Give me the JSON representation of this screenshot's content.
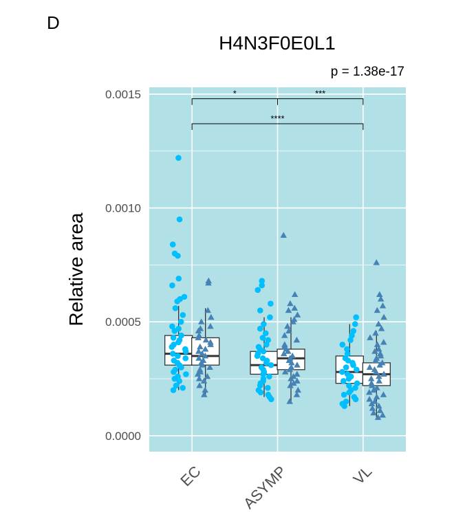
{
  "panel_label": "D",
  "chart_data": {
    "type": "box",
    "title": "H4N3F0E0L1",
    "subtitle": "p = 1.38e-17",
    "xlabel": "",
    "ylabel": "Relative area",
    "categories": [
      "EC",
      "ASYMP",
      "VL"
    ],
    "ylim": [
      -7e-05,
      0.00153
    ],
    "yticks": [
      0.0,
      0.0005,
      0.001,
      0.0015
    ],
    "ytick_labels": [
      "0.0000",
      "0.0005",
      "0.0010",
      "0.0015"
    ],
    "grid": true,
    "panel_color": "#b2e0e7",
    "series": [
      {
        "marker": "circle",
        "color": "#00bfff",
        "boxes": [
          {
            "category": "EC",
            "q1": 0.00031,
            "median": 0.00036,
            "q3": 0.00044,
            "whisker_low": 0.0002,
            "whisker_high": 0.00057
          },
          {
            "category": "ASYMP",
            "q1": 0.00027,
            "median": 0.00031,
            "q3": 0.00037,
            "whisker_low": 0.00017,
            "whisker_high": 0.00052
          },
          {
            "category": "VL",
            "q1": 0.00023,
            "median": 0.00028,
            "q3": 0.00035,
            "whisker_low": 0.00013,
            "whisker_high": 0.00049
          }
        ],
        "points": [
          {
            "category": "EC",
            "values": [
              0.00122,
              0.00095,
              0.00084,
              0.0008,
              0.00079,
              0.00069,
              0.00066,
              0.00061,
              0.0006,
              0.00059,
              0.00056,
              0.00053,
              0.0005,
              0.00048,
              0.00047,
              0.00046,
              0.00044,
              0.00043,
              0.00042,
              0.00041,
              0.0004,
              0.00039,
              0.00038,
              0.00037,
              0.00036,
              0.00035,
              0.00034,
              0.00033,
              0.00032,
              0.00031,
              0.0003,
              0.00029,
              0.00028,
              0.00027,
              0.00026,
              0.00025,
              0.00024,
              0.00022,
              0.0002,
              0.00021
            ]
          },
          {
            "category": "ASYMP",
            "values": [
              0.00068,
              0.00066,
              0.00064,
              0.00058,
              0.00055,
              0.00052,
              0.00049,
              0.00047,
              0.00045,
              0.00043,
              0.00042,
              0.0004,
              0.00039,
              0.00038,
              0.00037,
              0.00036,
              0.00035,
              0.00034,
              0.00033,
              0.00032,
              0.00031,
              0.0003,
              0.00029,
              0.00028,
              0.00027,
              0.00026,
              0.00025,
              0.00024,
              0.00023,
              0.00022,
              0.00021,
              0.0002,
              0.00019,
              0.00018,
              0.00017,
              0.00016
            ]
          },
          {
            "category": "VL",
            "values": [
              0.00052,
              0.00049,
              0.00046,
              0.00044,
              0.00042,
              0.0004,
              0.00038,
              0.00036,
              0.00034,
              0.00033,
              0.00032,
              0.00031,
              0.0003,
              0.00029,
              0.00028,
              0.00027,
              0.00026,
              0.00025,
              0.00024,
              0.00023,
              0.00022,
              0.00021,
              0.0002,
              0.00019,
              0.00018,
              0.00017,
              0.00016,
              0.00015,
              0.00014,
              0.00013
            ]
          }
        ]
      },
      {
        "marker": "triangle",
        "color": "#4682b4",
        "boxes": [
          {
            "category": "EC",
            "q1": 0.00031,
            "median": 0.00035,
            "q3": 0.00043,
            "whisker_low": 0.00018,
            "whisker_high": 0.00056
          },
          {
            "category": "ASYMP",
            "q1": 0.00029,
            "median": 0.00034,
            "q3": 0.00038,
            "whisker_low": 0.00015,
            "whisker_high": 0.00052
          },
          {
            "category": "VL",
            "q1": 0.00022,
            "median": 0.00027,
            "q3": 0.00032,
            "whisker_low": 8e-05,
            "whisker_high": 0.00046
          }
        ],
        "points": [
          {
            "category": "EC",
            "values": [
              0.00068,
              0.00067,
              0.00055,
              0.00052,
              0.0005,
              0.00048,
              0.00047,
              0.00046,
              0.00044,
              0.00043,
              0.00042,
              0.00041,
              0.0004,
              0.00039,
              0.00038,
              0.00037,
              0.00036,
              0.00035,
              0.00034,
              0.00033,
              0.00032,
              0.00031,
              0.0003,
              0.00029,
              0.00028,
              0.00027,
              0.00026,
              0.00025,
              0.00024,
              0.00022,
              0.0002,
              0.00018
            ]
          },
          {
            "category": "ASYMP",
            "values": [
              0.00088,
              0.00062,
              0.00058,
              0.00056,
              0.00055,
              0.00053,
              0.00051,
              0.0005,
              0.00048,
              0.00046,
              0.00044,
              0.00042,
              0.0004,
              0.00039,
              0.00038,
              0.00037,
              0.00036,
              0.00035,
              0.00034,
              0.00033,
              0.00032,
              0.00031,
              0.0003,
              0.00029,
              0.00028,
              0.00027,
              0.00026,
              0.00025,
              0.00024,
              0.00023,
              0.00022,
              0.0002,
              0.00018,
              0.00015
            ]
          },
          {
            "category": "VL",
            "values": [
              0.00076,
              0.00062,
              0.0006,
              0.00057,
              0.00055,
              0.00052,
              0.00049,
              0.00047,
              0.00045,
              0.00043,
              0.00041,
              0.0004,
              0.00038,
              0.00037,
              0.00036,
              0.00035,
              0.00034,
              0.00033,
              0.00032,
              0.00031,
              0.0003,
              0.00029,
              0.00028,
              0.00027,
              0.00026,
              0.00025,
              0.00024,
              0.00023,
              0.00022,
              0.00021,
              0.0002,
              0.00019,
              0.00018,
              0.00017,
              0.00016,
              0.00015,
              0.00014,
              0.00013,
              0.00012,
              0.00011,
              0.0001,
              9e-05,
              8e-05
            ]
          }
        ]
      }
    ],
    "significance": [
      {
        "from": "EC",
        "to": "ASYMP",
        "label": "*",
        "y": 0.00148
      },
      {
        "from": "ASYMP",
        "to": "VL",
        "label": "***",
        "y": 0.00148
      },
      {
        "from": "EC",
        "to": "VL",
        "label": "****",
        "y": 0.00137
      }
    ]
  }
}
